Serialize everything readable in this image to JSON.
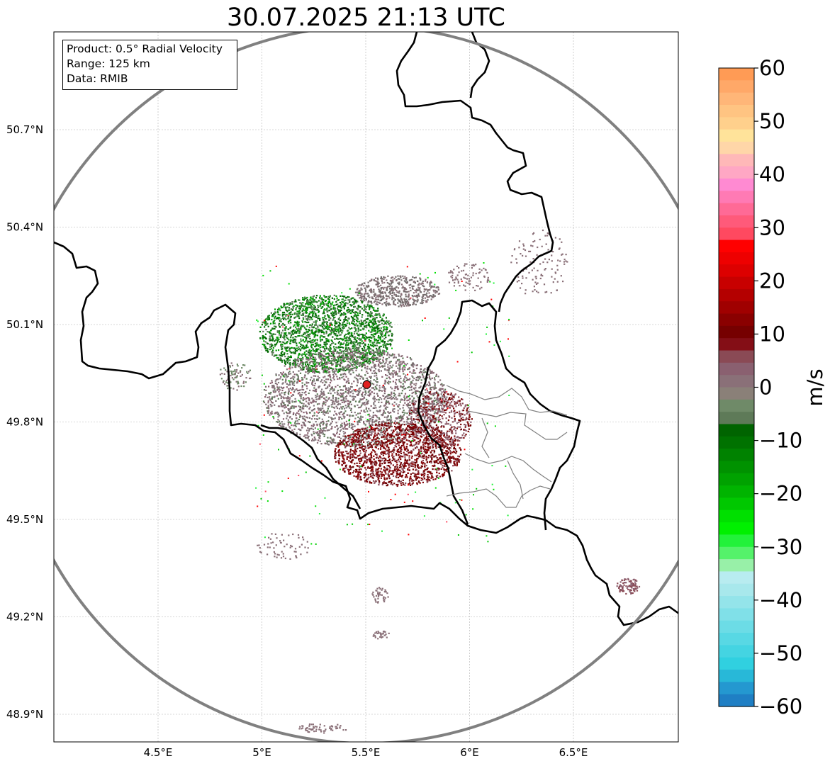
{
  "title": "30.07.2025 21:13 UTC",
  "info_box": {
    "product": "Product: 0.5° Radial Velocity",
    "range": "Range: 125 km",
    "source": "Data: RMIB"
  },
  "map": {
    "lon_range": [
      4.0,
      7.0
    ],
    "lat_range": [
      48.8,
      51.0
    ],
    "x_ticks": [
      {
        "value": 4.5,
        "label": "4.5°E"
      },
      {
        "value": 5.0,
        "label": "5°E"
      },
      {
        "value": 5.5,
        "label": "5.5°E"
      },
      {
        "value": 6.0,
        "label": "6°E"
      },
      {
        "value": 6.5,
        "label": "6.5°E"
      }
    ],
    "y_ticks": [
      {
        "value": 48.9,
        "label": "48.9°N"
      },
      {
        "value": 49.2,
        "label": "49.2°N"
      },
      {
        "value": 49.5,
        "label": "49.5°N"
      },
      {
        "value": 49.8,
        "label": "49.8°N"
      },
      {
        "value": 50.1,
        "label": "50.1°N"
      },
      {
        "value": 50.4,
        "label": "50.4°N"
      },
      {
        "value": 50.7,
        "label": "50.7°N"
      }
    ],
    "gridlines": true,
    "radar_site": {
      "lon": 5.505,
      "lat": 49.915
    },
    "range_ring_color": "#808080",
    "radar_marker_color": "#e02020"
  },
  "colorbar": {
    "label": "m/s",
    "range": [
      -60,
      60
    ],
    "ticks": [
      {
        "value": 60,
        "label": "60"
      },
      {
        "value": 50,
        "label": "50"
      },
      {
        "value": 40,
        "label": "40"
      },
      {
        "value": 30,
        "label": "30"
      },
      {
        "value": 20,
        "label": "20"
      },
      {
        "value": 10,
        "label": "10"
      },
      {
        "value": 0,
        "label": "0"
      },
      {
        "value": -10,
        "label": "−10"
      },
      {
        "value": -20,
        "label": "−20"
      },
      {
        "value": -30,
        "label": "−30"
      },
      {
        "value": -40,
        "label": "−40"
      },
      {
        "value": -50,
        "label": "−50"
      },
      {
        "value": -60,
        "label": "−60"
      }
    ],
    "colors_top_to_bottom": [
      "#ff9b55",
      "#ffa868",
      "#ffb678",
      "#ffc482",
      "#ffd08c",
      "#ffe39a",
      "#ffd6a8",
      "#ffb8b8",
      "#ffa7c4",
      "#ff8ad2",
      "#ff7ab4",
      "#ff6a96",
      "#ff5a7a",
      "#ff4960",
      "#ff0000",
      "#ee0000",
      "#dd0000",
      "#c80000",
      "#b40000",
      "#a00000",
      "#8a0000",
      "#760000",
      "#840e16",
      "#8a4a55",
      "#8a6070",
      "#8a7078",
      "#8a8078",
      "#6f8a68",
      "#5e7a58",
      "#006400",
      "#007200",
      "#008200",
      "#009200",
      "#00a200",
      "#00b400",
      "#00c800",
      "#00e000",
      "#00f000",
      "#22f23a",
      "#55f26a",
      "#98f0a8",
      "#b8ecf0",
      "#a8e8ec",
      "#94e4ea",
      "#80e0e8",
      "#6cdce6",
      "#58d8e4",
      "#44d4e2",
      "#30d0e0",
      "#28b8d8",
      "#2498d0",
      "#1f7fc4"
    ]
  }
}
